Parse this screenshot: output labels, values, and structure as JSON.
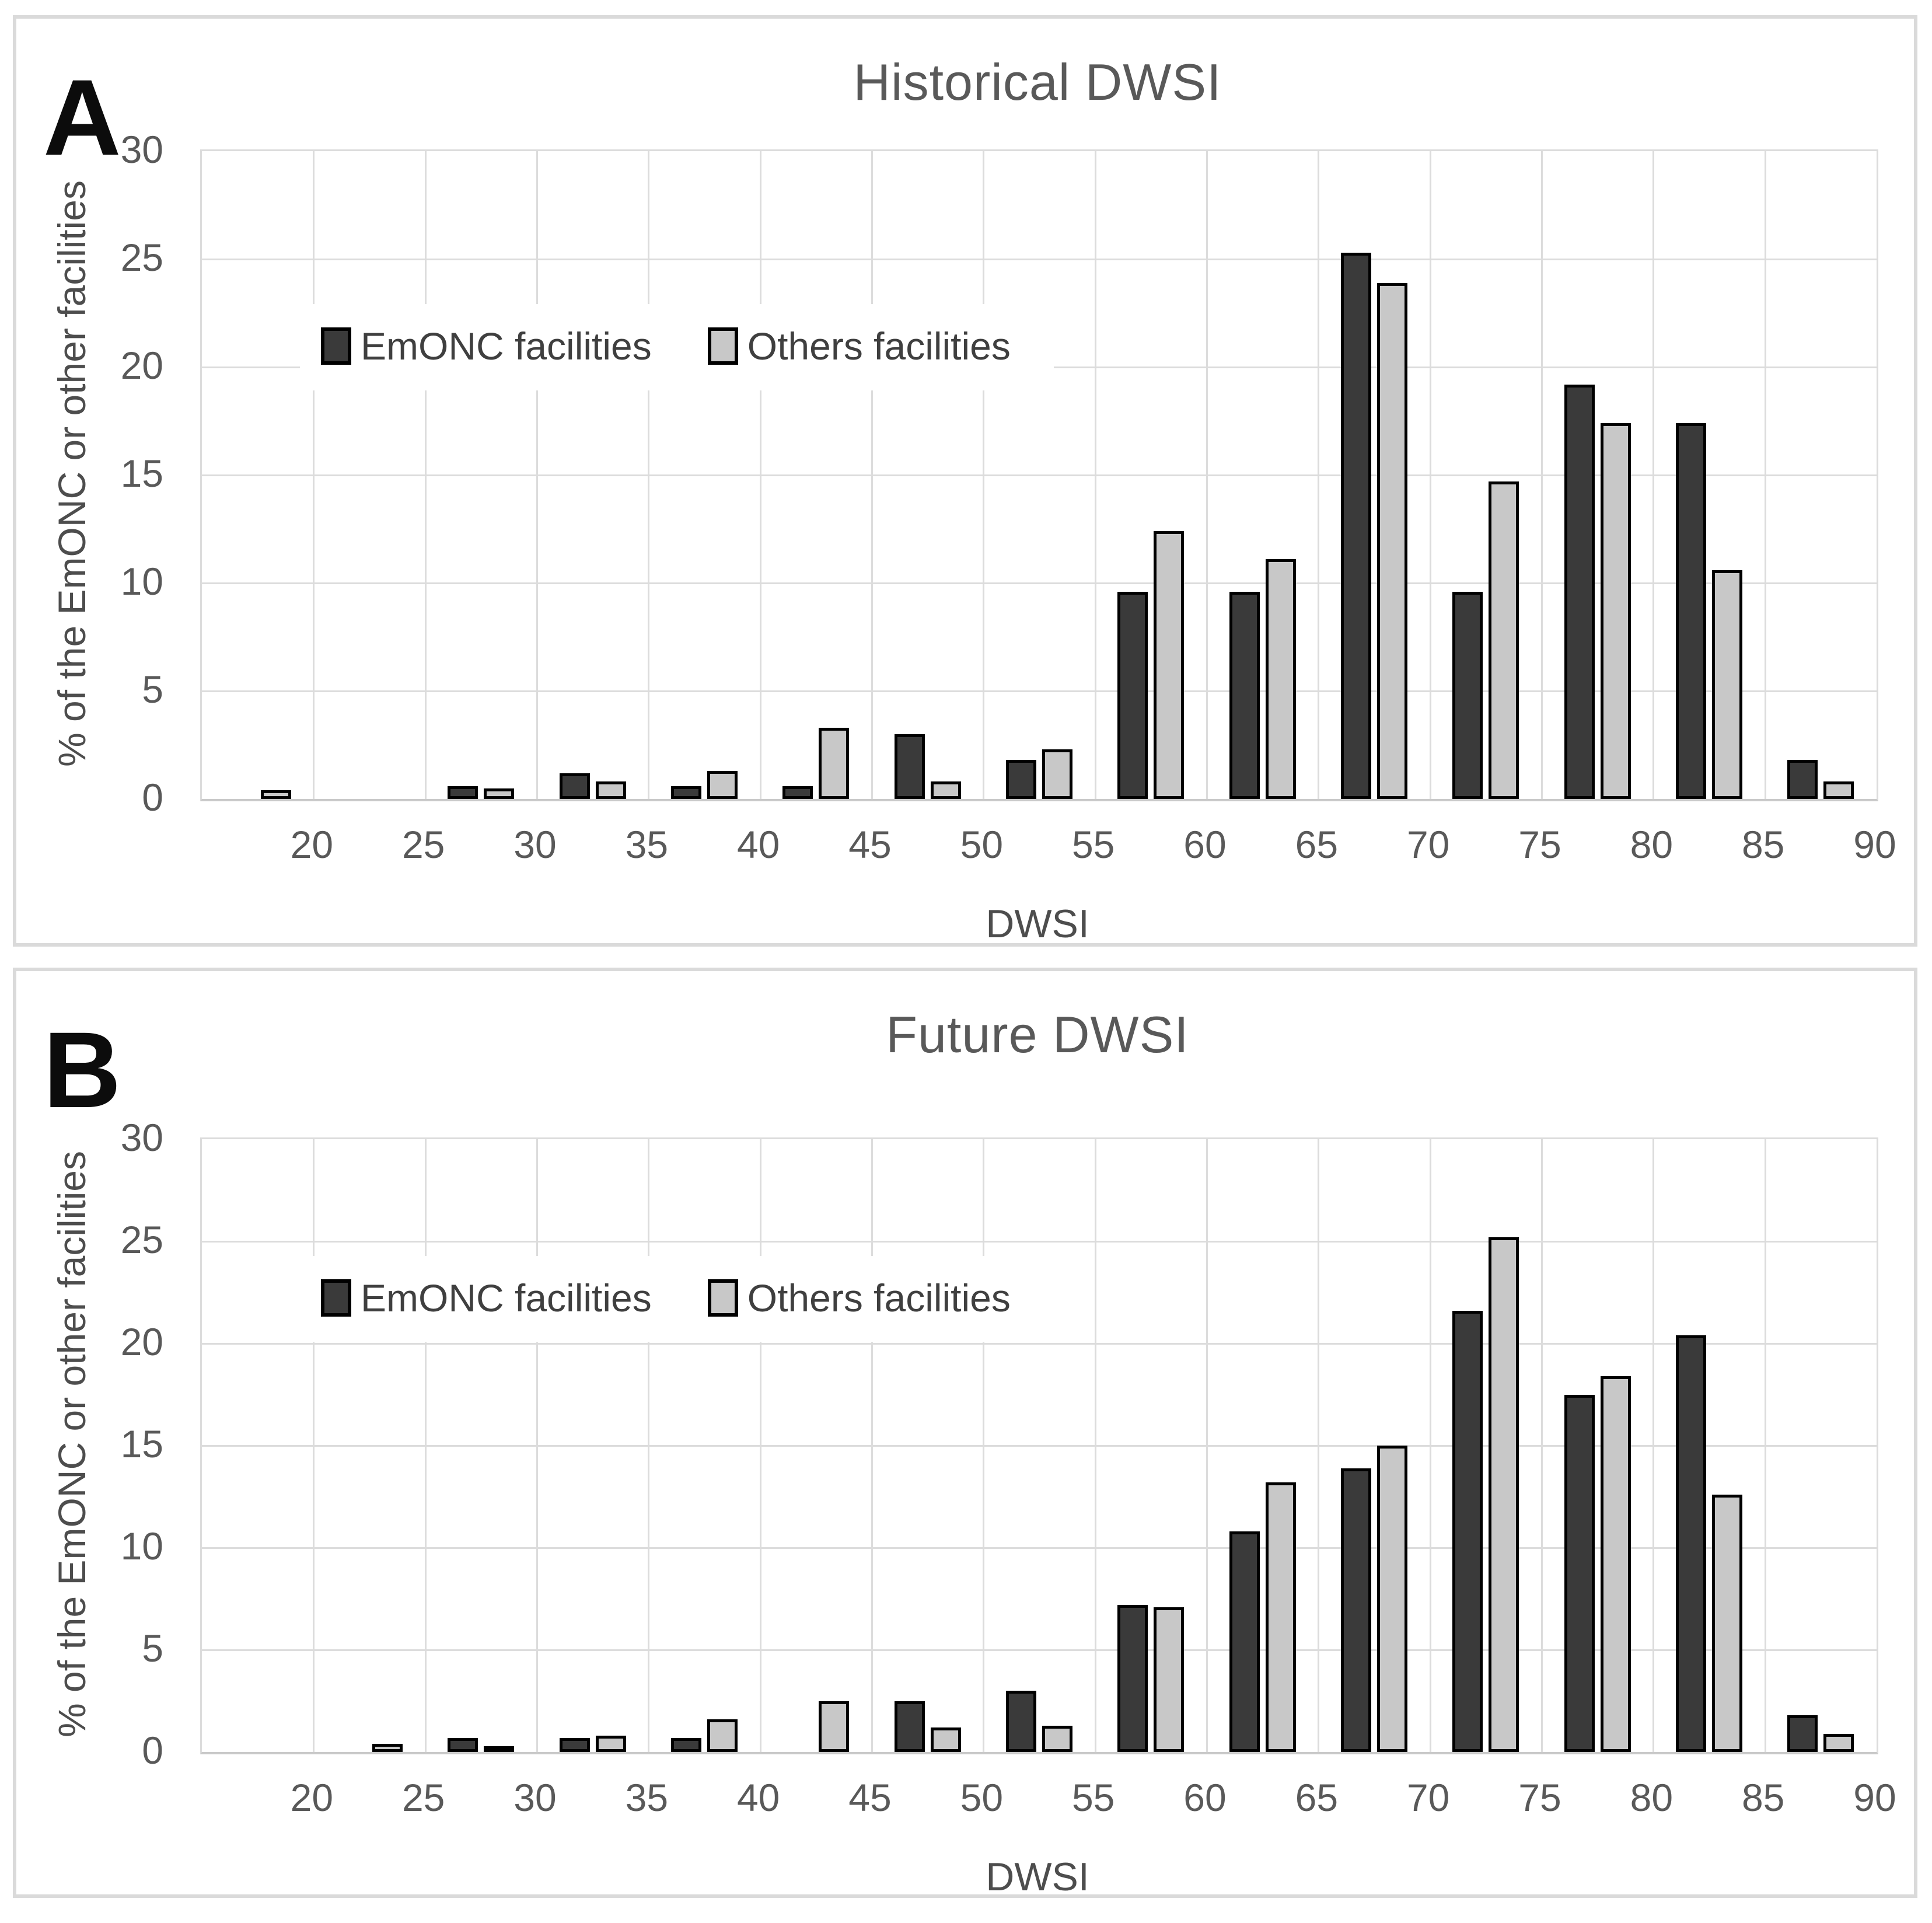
{
  "figure": {
    "panels": [
      {
        "letter": "A",
        "title": "Historical DWSI",
        "y_axis_title": "% of the EmONC or other facilities",
        "x_axis_title": "DWSI",
        "legend": [
          "EmONC facilities",
          "Others facilities"
        ]
      },
      {
        "letter": "B",
        "title": "Future DWSI",
        "y_axis_title": "% of the EmONC or other facilities",
        "x_axis_title": "DWSI",
        "legend": [
          "EmONC facilities",
          "Others facilities"
        ]
      }
    ]
  },
  "chart_data": [
    {
      "type": "bar",
      "title": "Historical DWSI",
      "xlabel": "DWSI",
      "ylabel": "% of the EmONC or other facilities",
      "ylim": [
        0,
        30
      ],
      "yticks": [
        0,
        5,
        10,
        15,
        20,
        25,
        30
      ],
      "x_range": [
        15,
        90
      ],
      "bin_width": 5,
      "xticks": [
        20,
        25,
        30,
        35,
        40,
        45,
        50,
        55,
        60,
        65,
        70,
        75,
        80,
        85,
        90
      ],
      "categories": [
        "15-20",
        "20-25",
        "25-30",
        "30-35",
        "35-40",
        "40-45",
        "45-50",
        "50-55",
        "55-60",
        "60-65",
        "65-70",
        "70-75",
        "75-80",
        "80-85",
        "85-90"
      ],
      "series": [
        {
          "name": "EmONC facilities",
          "color": "#3a3a3a",
          "values": [
            0,
            0,
            0.6,
            1.2,
            0.6,
            0.6,
            3.0,
            1.8,
            9.6,
            9.6,
            25.3,
            9.6,
            19.2,
            17.4,
            1.8
          ]
        },
        {
          "name": "Others facilities",
          "color": "#c8c8c8",
          "values": [
            0.4,
            0,
            0.5,
            0.8,
            1.3,
            3.3,
            0.8,
            2.3,
            12.4,
            11.1,
            23.9,
            14.7,
            17.4,
            10.6,
            0.8
          ]
        }
      ],
      "grid": true,
      "legend_position": "inside-upper-left"
    },
    {
      "type": "bar",
      "title": "Future DWSI",
      "xlabel": "DWSI",
      "ylabel": "% of the EmONC or other facilities",
      "ylim": [
        0,
        30
      ],
      "yticks": [
        0,
        5,
        10,
        15,
        20,
        25,
        30
      ],
      "x_range": [
        15,
        90
      ],
      "bin_width": 5,
      "xticks": [
        20,
        25,
        30,
        35,
        40,
        45,
        50,
        55,
        60,
        65,
        70,
        75,
        80,
        85,
        90
      ],
      "categories": [
        "15-20",
        "20-25",
        "25-30",
        "30-35",
        "35-40",
        "40-45",
        "45-50",
        "50-55",
        "55-60",
        "60-65",
        "65-70",
        "70-75",
        "75-80",
        "80-85",
        "85-90"
      ],
      "series": [
        {
          "name": "EmONC facilities",
          "color": "#3a3a3a",
          "values": [
            0,
            0,
            0.7,
            0.7,
            0.7,
            0,
            2.5,
            3.0,
            7.2,
            10.8,
            13.9,
            21.6,
            17.5,
            20.4,
            1.8
          ]
        },
        {
          "name": "Others facilities",
          "color": "#c8c8c8",
          "values": [
            0,
            0.4,
            0.3,
            0.8,
            1.6,
            2.5,
            1.2,
            1.3,
            7.1,
            13.2,
            15.0,
            25.2,
            18.4,
            12.6,
            0.9
          ]
        }
      ],
      "grid": true,
      "legend_position": "inside-upper-left"
    }
  ]
}
